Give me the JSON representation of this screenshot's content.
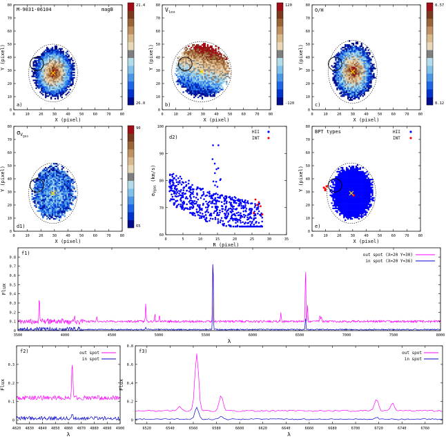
{
  "figure": {
    "galaxy_id": "M-9031-06104"
  },
  "map_axes": {
    "xlabel": "X (pixel)",
    "ylabel": "Y (pixel)",
    "ticks": [
      0,
      10,
      20,
      30,
      40,
      50,
      60,
      70,
      80
    ]
  },
  "colors": {
    "map_ramp": [
      "#000c8c",
      "#0033cc",
      "#1f66e6",
      "#4a97e8",
      "#7fc1ea",
      "#b3dceb",
      "#7f7f7f",
      "#e8d7b8",
      "#d8b98c",
      "#c09060",
      "#9a6436",
      "#7a3a1e",
      "#a00d16"
    ],
    "hii": "#0000ff",
    "int": "#ff0000",
    "out_spot": "#ff00ff",
    "in_spot": "#0000cc"
  },
  "chart_data": [
    {
      "id": "a",
      "type": "heatmap",
      "panel_label": "a)",
      "title": "magB",
      "xlim": [
        0,
        80
      ],
      "ylim": [
        0,
        80
      ],
      "colorbar": {
        "max_label": "21.4",
        "min_label": "26.0"
      },
      "map": {
        "cx": 29,
        "cy": 28,
        "rx": 15,
        "ry": 19,
        "noise": 0.22,
        "profile": "bump",
        "seed": 3
      },
      "spot": {
        "x": 17,
        "y": 35,
        "r": 5
      }
    },
    {
      "id": "b",
      "type": "heatmap",
      "panel_label": "b)",
      "title": "V_los",
      "xlim": [
        0,
        80
      ],
      "ylim": [
        0,
        80
      ],
      "colorbar": {
        "max_label": "120",
        "min_label": "-120"
      },
      "map": {
        "cx": 29,
        "cy": 29,
        "rx": 19,
        "ry": 20,
        "noise": 0.25,
        "profile": "gradient",
        "seed": 7
      },
      "spot": {
        "x": 17,
        "y": 35,
        "r": 5
      }
    },
    {
      "id": "c",
      "type": "heatmap",
      "panel_label": "c)",
      "title": "O/H",
      "xlim": [
        0,
        80
      ],
      "ylim": [
        0,
        80
      ],
      "colorbar": {
        "max_label": "8.57",
        "min_label": "8.12"
      },
      "map": {
        "cx": 30,
        "cy": 29,
        "rx": 15,
        "ry": 21,
        "noise": 0.3,
        "profile": "bump",
        "seed": 11
      },
      "spot": {
        "x": 17,
        "y": 35,
        "r": 5
      }
    },
    {
      "id": "d1",
      "type": "heatmap",
      "panel_label": "d1)",
      "title": "σ_Vgas",
      "xlim": [
        0,
        80
      ],
      "ylim": [
        0,
        80
      ],
      "colorbar": {
        "max_label": "90",
        "min_label": "65"
      },
      "map": {
        "cx": 29,
        "cy": 29,
        "rx": 15,
        "ry": 20,
        "noise": 0.35,
        "profile": "low",
        "seed": 19
      },
      "spot": {
        "x": 17,
        "y": 35,
        "r": 5
      }
    },
    {
      "id": "d2",
      "type": "scatter",
      "panel_label": "d2)",
      "xlabel": "R (pixel)",
      "ylabel": "σ_Vgas (km/s)",
      "xlim": [
        0,
        35
      ],
      "ylim": [
        60,
        100
      ],
      "xticks": [
        0,
        5,
        10,
        15,
        20,
        25,
        30,
        35
      ],
      "yticks": [
        60,
        70,
        80,
        90,
        100
      ],
      "legend": [
        "HII",
        "INT"
      ],
      "series": [
        {
          "name": "HII",
          "generated": {
            "n": 650,
            "seed": 23
          }
        },
        {
          "name": "INT",
          "points": [
            [
              25.5,
              68
            ],
            [
              26.5,
              71
            ],
            [
              27,
              72
            ],
            [
              27.5,
              70.5
            ],
            [
              28,
              67.5
            ],
            [
              26,
              73
            ]
          ]
        }
      ]
    },
    {
      "id": "e",
      "type": "heatmap",
      "panel_label": "e)",
      "title": "BPT types",
      "xlim": [
        0,
        80
      ],
      "ylim": [
        0,
        80
      ],
      "legend": [
        "HII",
        "INT"
      ],
      "map": {
        "cx": 29,
        "cy": 29,
        "rx": 15,
        "ry": 20,
        "noise": 0.2,
        "profile": "bpt",
        "seed": 29
      },
      "spot": {
        "x": 17,
        "y": 35,
        "r": 5
      }
    },
    {
      "id": "f1",
      "type": "line",
      "panel_label": "f1)",
      "xlabel": "λ",
      "ylabel": "Flux",
      "xlim": [
        3500,
        8000
      ],
      "ylim": [
        0,
        0.9
      ],
      "xticks": [
        3500,
        4000,
        4500,
        5000,
        5500,
        6000,
        6500,
        7000,
        7500,
        8000
      ],
      "yticks": [
        0,
        0.1,
        0.2,
        0.3,
        0.4,
        0.5,
        0.6,
        0.7,
        0.8
      ],
      "series": [
        {
          "name": "out spot (X=20 Y=30)",
          "base": 0.1,
          "noise": 0.012,
          "lines": [
            [
              3727,
              0.38
            ],
            [
              4102,
              0.15
            ],
            [
              4340,
              0.16
            ],
            [
              4861,
              0.3
            ],
            [
              4959,
              0.17
            ],
            [
              5007,
              0.17
            ],
            [
              5577,
              0.82
            ],
            [
              6300,
              0.2
            ],
            [
              6563,
              0.72
            ],
            [
              6584,
              0.28
            ],
            [
              6717,
              0.18
            ],
            [
              6731,
              0.15
            ]
          ]
        },
        {
          "name": "in spot (X=20 Y=36)",
          "base": 0.012,
          "noise": 0.006,
          "lines": [
            [
              5577,
              0.84
            ],
            [
              6563,
              0.15
            ],
            [
              4861,
              0.04
            ]
          ]
        }
      ]
    },
    {
      "id": "f2",
      "type": "line",
      "panel_label": "f2)",
      "xlabel": "λ",
      "ylabel": "Flux",
      "xlim": [
        4820,
        4900
      ],
      "ylim": [
        -0.02,
        0.4
      ],
      "xticks": [
        4820,
        4830,
        4840,
        4850,
        4860,
        4870,
        4880,
        4890,
        4900
      ],
      "yticks": [
        0,
        0.1,
        0.2,
        0.3
      ],
      "series": [
        {
          "name": "out spot",
          "base": 0.12,
          "noise": 0.012,
          "lines": [
            [
              4863,
              0.3
            ]
          ]
        },
        {
          "name": "in spot",
          "base": 0.01,
          "noise": 0.01,
          "lines": [
            [
              4863,
              0.035
            ]
          ]
        }
      ]
    },
    {
      "id": "f3",
      "type": "line",
      "panel_label": "f3)",
      "xlabel": "λ",
      "ylabel": "Flux",
      "xlim": [
        6510,
        6775
      ],
      "ylim": [
        -0.04,
        0.8
      ],
      "xticks": [
        6520,
        6540,
        6560,
        6580,
        6600,
        6620,
        6640,
        6660,
        6680,
        6700,
        6720,
        6740,
        6760
      ],
      "yticks": [
        0,
        0.2,
        0.4,
        0.6,
        0.8
      ],
      "series": [
        {
          "name": "out spot",
          "base": 0.1,
          "noise": 0.008,
          "lines": [
            [
              6563,
              0.72
            ],
            [
              6548,
              0.15
            ],
            [
              6584,
              0.27
            ],
            [
              6718,
              0.23
            ],
            [
              6732,
              0.18
            ]
          ]
        },
        {
          "name": "in spot",
          "base": 0.01,
          "noise": 0.006,
          "lines": [
            [
              6563,
              0.14
            ],
            [
              6584,
              0.04
            ],
            [
              6718,
              0.03
            ]
          ]
        }
      ]
    }
  ]
}
